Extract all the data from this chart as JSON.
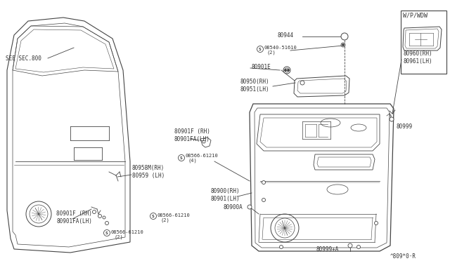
{
  "bg_color": "#ffffff",
  "line_color": "#444444",
  "text_color": "#333333",
  "watermark": "^809*0·R",
  "labels": {
    "see_sec": "SEE SEC.800",
    "p80958": "80958M(RH)\n80959 (LH)",
    "p80901f_left": "80901F (RH)\n80901FA(LH)",
    "p08566_2a": "©08566-61210\n   (2)",
    "p08566_2b": "©08566-61210\n   (2)",
    "p80944": "80944",
    "p08540": "©08540-51610\n  (2)",
    "p80901e": "80901E",
    "p80950": "80950(RH)\n80951(LH)",
    "p80901f_mid": "80901F (RH)\n80901FA(LH)",
    "p08566_4": "©08566-61210\n   (4)",
    "p80900": "80900(RH)\n80901(LH)",
    "p80900a": "80900A",
    "p80960": "80960(RH)\n80961(LH)",
    "p80999": "80999",
    "p80999a": "80999+A",
    "wp_wdw": "W/P/WDW"
  }
}
